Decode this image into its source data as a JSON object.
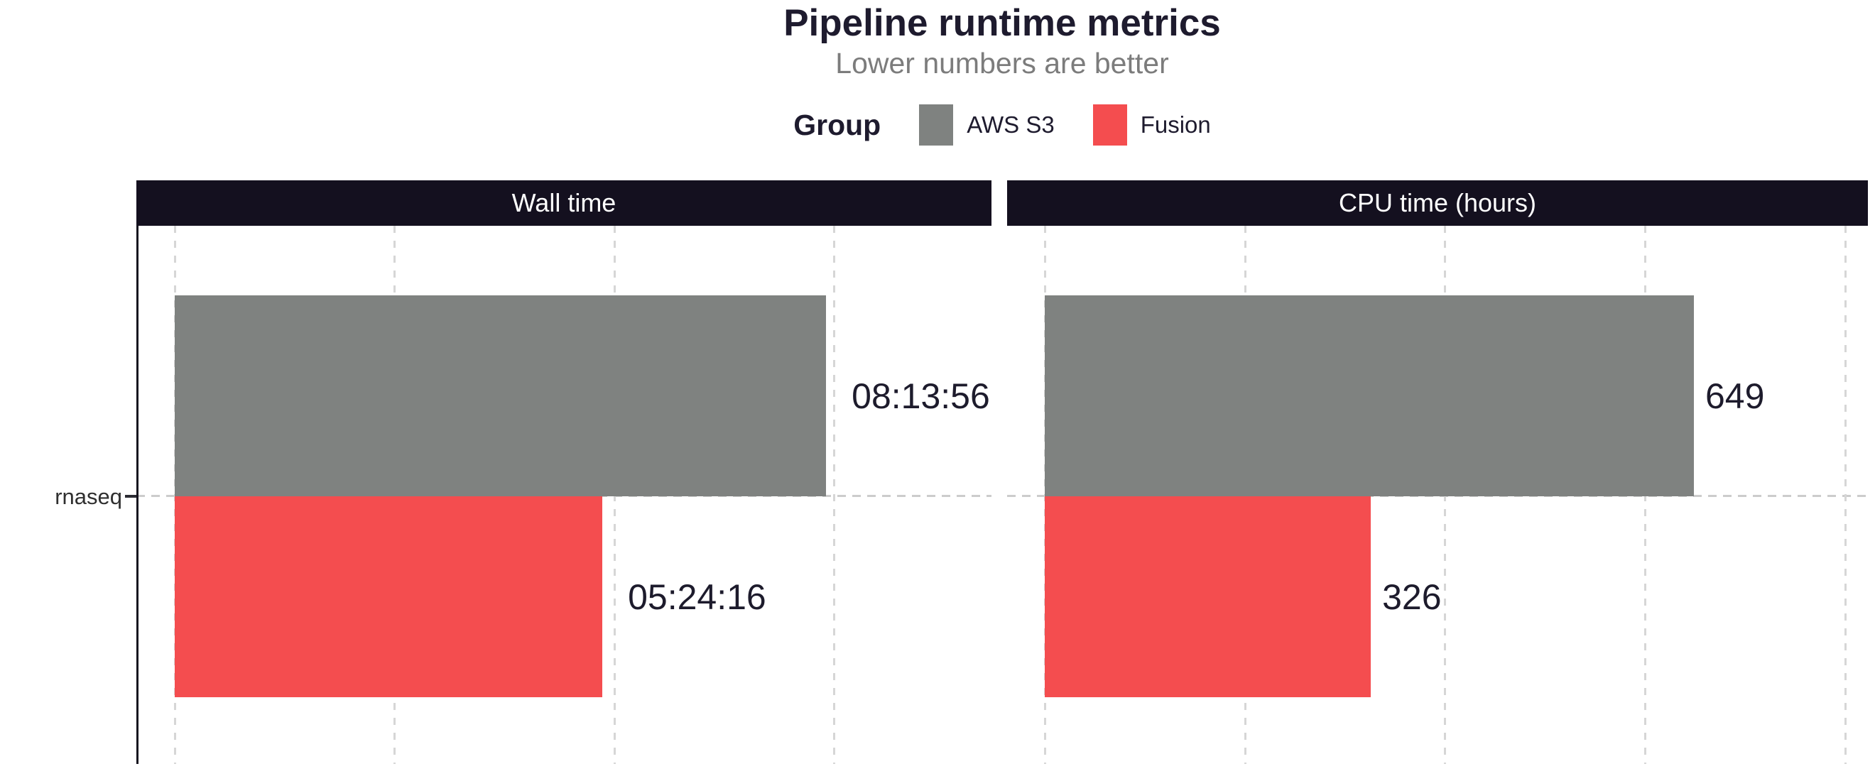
{
  "header": {
    "title": "Pipeline runtime metrics",
    "subtitle": "Lower numbers are better"
  },
  "legend": {
    "title": "Group",
    "items": [
      {
        "label": "AWS S3",
        "color": "#7f8280"
      },
      {
        "label": "Fusion",
        "color": "#f44d4f"
      }
    ],
    "position": "top"
  },
  "colors": {
    "strip_background": "#14101f",
    "strip_text": "#ffffff",
    "title_text": "#1e1b2e",
    "subtitle_text": "#7c7c7c",
    "gridline": "#d6d6d6",
    "axis_line": "#17141f",
    "bar_label_text": "#1d1b2c"
  },
  "chart_data": {
    "type": "bar",
    "orientation": "horizontal",
    "title": "Pipeline runtime metrics",
    "subtitle": "Lower numbers are better",
    "grid": "dashed vertical gridlines + dashed category line",
    "legend_position": "top",
    "category_axis": {
      "categories": [
        "rnaseq"
      ]
    },
    "facets": [
      {
        "title": "Wall time",
        "unit": "seconds",
        "xlim": [
          0,
          37160
        ],
        "gridlines": [
          0,
          10000,
          20000,
          30000
        ],
        "bars": [
          {
            "group": "AWS S3",
            "value": 29636,
            "label": "08:13:56"
          },
          {
            "group": "Fusion",
            "value": 19456,
            "label": "05:24:16"
          }
        ]
      },
      {
        "title": "CPU time (hours)",
        "unit": "hours",
        "xlim": [
          0,
          823
        ],
        "gridlines": [
          0,
          200,
          400,
          600,
          800
        ],
        "bars": [
          {
            "group": "AWS S3",
            "value": 649,
            "label": "649"
          },
          {
            "group": "Fusion",
            "value": 326,
            "label": "326"
          }
        ]
      }
    ]
  }
}
